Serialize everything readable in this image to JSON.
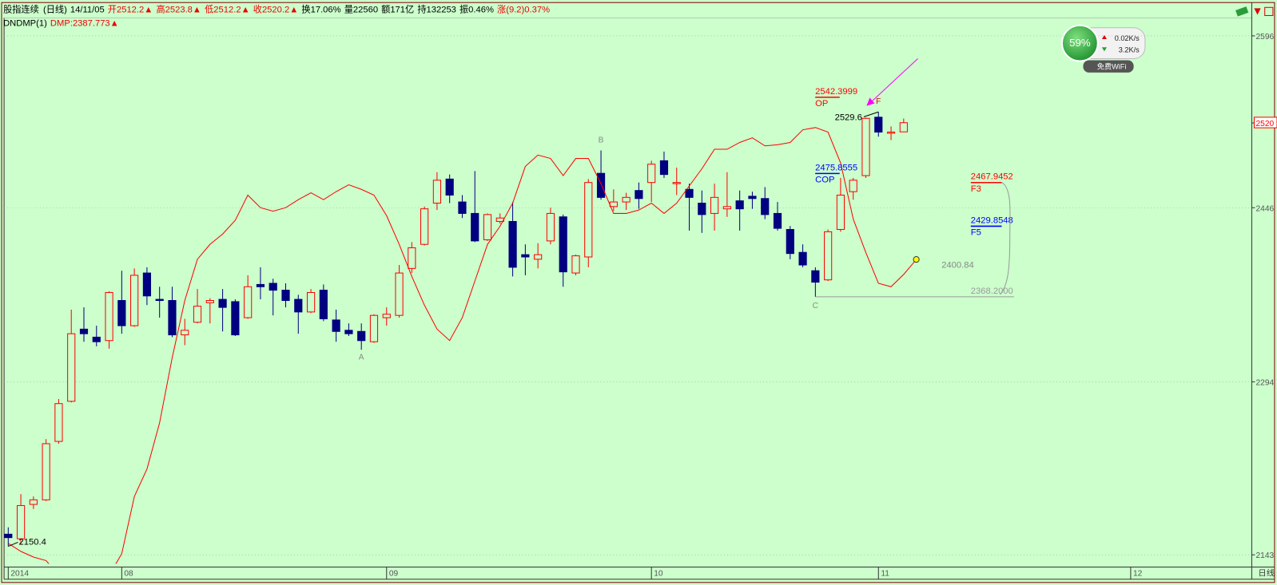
{
  "header": {
    "name": "股指连续",
    "period": "(日线)",
    "date": "14/11/05",
    "ohlc_labels": [
      "开",
      "高",
      "低",
      "收"
    ],
    "arrow": "▲",
    "stats": [
      "换17.06%",
      "量22560",
      "额171亿",
      "持132253",
      "振0.46%"
    ],
    "change_label": "涨",
    "change": "(9.2)0.37%"
  },
  "widget": {
    "percent": "59%",
    "upload": "0.02K/s",
    "download": "3.2K/s",
    "wifi": "免费WiFi"
  },
  "chart_data": {
    "type": "candlestick",
    "up_color": "#ff0000",
    "down_color": "#000080",
    "grid": true,
    "open": [
      2161,
      2157,
      2187,
      2191,
      2242,
      2277,
      2340,
      2333,
      2330,
      2365,
      2343,
      2389,
      2366,
      2365,
      2335,
      2346,
      2363,
      2366,
      2364,
      2350,
      2379,
      2380,
      2374,
      2366,
      2355,
      2374,
      2348,
      2339,
      2338,
      2329,
      2350,
      2352,
      2393,
      2414,
      2450,
      2471,
      2451,
      2441,
      2418,
      2434,
      2434,
      2405,
      2401,
      2417,
      2438,
      2389,
      2403,
      2476,
      2447,
      2451,
      2461,
      2468,
      2487,
      2467,
      2462,
      2450,
      2441,
      2445,
      2452,
      2456,
      2454,
      2441,
      2427,
      2407,
      2391,
      2383,
      2427,
      2460,
      2474,
      2525,
      2511,
      2512.2
    ],
    "high": [
      2167,
      2196,
      2194,
      2244,
      2279,
      2357,
      2359,
      2343,
      2373,
      2391,
      2393,
      2394,
      2377,
      2377,
      2349,
      2375,
      2367,
      2375,
      2366,
      2387,
      2394,
      2384,
      2380,
      2370,
      2375,
      2379,
      2357,
      2345,
      2345,
      2353,
      2359,
      2396,
      2416,
      2447,
      2477,
      2475,
      2457,
      2478,
      2441,
      2441,
      2451,
      2414,
      2415,
      2446,
      2440,
      2405,
      2471,
      2496,
      2462,
      2459,
      2468,
      2487,
      2495,
      2481,
      2467,
      2461,
      2467,
      2477,
      2461,
      2460,
      2464,
      2451,
      2430,
      2414,
      2394,
      2427,
      2472,
      2472,
      2524.7,
      2529.6,
      2517,
      2523.8
    ],
    "low": [
      2150.4,
      2152,
      2183,
      2190,
      2240,
      2276,
      2329,
      2325,
      2323,
      2336,
      2342,
      2361,
      2350,
      2333,
      2326,
      2345,
      2345,
      2338,
      2334,
      2349,
      2366,
      2352,
      2359,
      2336,
      2354,
      2347,
      2329,
      2334,
      2322,
      2328,
      2343,
      2350,
      2389,
      2413,
      2444,
      2450,
      2437,
      2416,
      2417,
      2432,
      2386,
      2387,
      2393,
      2414,
      2377,
      2387,
      2394,
      2453,
      2443,
      2444,
      2445,
      2451,
      2472,
      2457,
      2426,
      2424,
      2426,
      2438,
      2426,
      2445,
      2436,
      2426,
      2401,
      2394,
      2368.2,
      2382,
      2425,
      2453,
      2472,
      2508,
      2505,
      2512.2
    ],
    "close": [
      2158,
      2186,
      2191,
      2240,
      2275,
      2336,
      2336,
      2329,
      2372,
      2343,
      2387,
      2369,
      2365,
      2335,
      2339,
      2360,
      2365,
      2359,
      2335,
      2377,
      2377,
      2374,
      2365,
      2355,
      2372,
      2349,
      2338,
      2336,
      2330,
      2352,
      2353,
      2389,
      2411,
      2445,
      2470,
      2457,
      2441,
      2417,
      2440,
      2437,
      2394,
      2403,
      2405,
      2441,
      2390,
      2404,
      2468,
      2455,
      2451,
      2455,
      2454,
      2484,
      2475,
      2468,
      2455,
      2440,
      2455,
      2447,
      2445,
      2454,
      2440,
      2428,
      2406,
      2396,
      2381,
      2425,
      2457,
      2470,
      2524,
      2512,
      2512,
      2520.2
    ],
    "indicator": {
      "name": "DNDMP(1)",
      "label": "DMP:",
      "color": "#ff0000",
      "values": [
        2153,
        2146,
        2141,
        2138,
        2125,
        2112,
        2105,
        2110,
        2125,
        2144,
        2194,
        2218,
        2258,
        2315,
        2365,
        2401,
        2414,
        2423,
        2435,
        2457,
        2446,
        2443,
        2446,
        2453,
        2459,
        2453,
        2460,
        2466,
        2462,
        2457,
        2439,
        2414,
        2386,
        2361,
        2340,
        2330,
        2350,
        2382,
        2414,
        2430,
        2450,
        2482,
        2492,
        2489,
        2474,
        2489,
        2489,
        2467,
        2441,
        2441,
        2444,
        2450,
        2441,
        2450,
        2465,
        2480,
        2497,
        2497,
        2503,
        2507,
        2500,
        2501,
        2503,
        2514,
        2516,
        2512,
        2485,
        2436,
        2407,
        2380,
        2377,
        2387.773,
        2400.84
      ]
    },
    "levels": [
      {
        "name": "OP",
        "value": 2542.3999,
        "color": "#ff0000"
      },
      {
        "name": "COP",
        "value": 2475.8555,
        "color": "#0000ff"
      },
      {
        "name": "F3",
        "value": 2467.9452,
        "color": "#ff0000"
      },
      {
        "name": "F5",
        "value": 2429.8548,
        "color": "#0000ff"
      },
      {
        "value": 2368.2,
        "label": "2368.2000",
        "color": "#999999"
      }
    ],
    "points": [
      "A",
      "B",
      "C",
      "F"
    ],
    "ylim": [
      2135.2,
      2611.6
    ],
    "yticks": [
      2143,
      2294,
      2446,
      {
        "value": 2520,
        "color": "#ff0000"
      },
      2596
    ],
    "xlim": [
      -0.33,
      98.6
    ],
    "xticks": [
      {
        "value": 0,
        "label": "2014"
      },
      {
        "value": 9,
        "label": "08"
      },
      {
        "value": 30,
        "label": "09"
      },
      {
        "value": 51,
        "label": "10"
      },
      {
        "value": 69,
        "label": "11"
      },
      {
        "value": 89,
        "label": "12"
      }
    ],
    "period_label": "日线"
  }
}
